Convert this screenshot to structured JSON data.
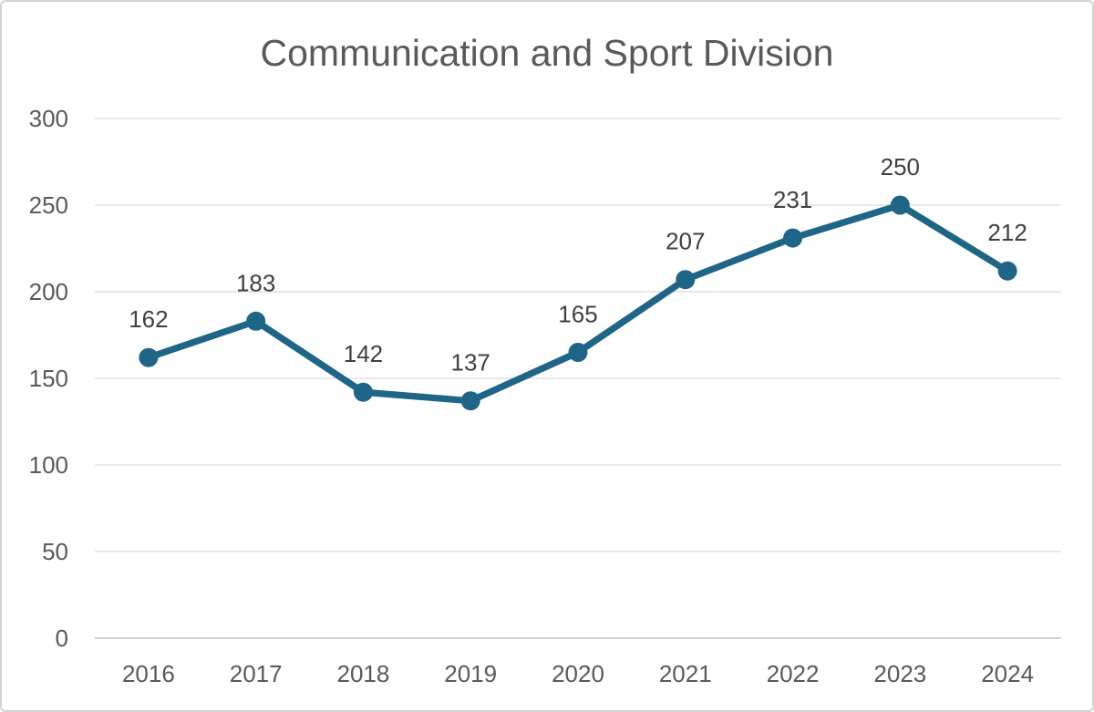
{
  "chart_data": {
    "type": "line",
    "title": "Communication and Sport Division",
    "categories": [
      "2016",
      "2017",
      "2018",
      "2019",
      "2020",
      "2021",
      "2022",
      "2023",
      "2024"
    ],
    "values": [
      162,
      183,
      142,
      137,
      165,
      207,
      231,
      250,
      212
    ],
    "data_labels": [
      "162",
      "183",
      "142",
      "137",
      "165",
      "207",
      "231",
      "250",
      "212"
    ],
    "xlabel": "",
    "ylabel": "",
    "ylim": [
      0,
      300
    ],
    "yticks": [
      0,
      50,
      100,
      150,
      200,
      250,
      300
    ],
    "grid": "horizontal",
    "legend": "none",
    "colors": {
      "line": "#1E6587",
      "marker": "#1E6587",
      "data_label": "#404040",
      "tick_label": "#595959",
      "title": "#595959",
      "gridline": "#D9D9D9",
      "axis_line": "#BFBFBF",
      "background": "#FFFFFF",
      "frame_border": "#D2D2D2"
    }
  }
}
